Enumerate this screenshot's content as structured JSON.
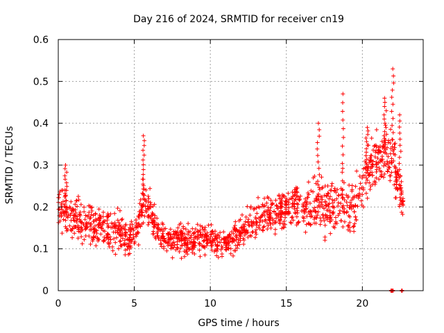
{
  "chart_data": {
    "type": "scatter",
    "title": "Day 216 of 2024, SRMTID for receiver cn19",
    "xlabel": "GPS time / hours",
    "ylabel": "SRMTID / TECUs",
    "xlim": [
      0,
      24
    ],
    "ylim": [
      0,
      0.6
    ],
    "x_ticks": [
      0,
      5,
      10,
      15,
      20
    ],
    "x_tick_labels": [
      "0",
      "5",
      "10",
      "15",
      "20"
    ],
    "y_ticks": [
      0,
      0.1,
      0.2,
      0.3,
      0.4,
      0.5,
      0.6
    ],
    "y_tick_labels": [
      "0",
      "0.1",
      "0.2",
      "0.3",
      "0.4",
      "0.5",
      "0.6"
    ],
    "grid": true,
    "marker": "+",
    "series": [
      {
        "name": "SRMTID",
        "color": "#ff0000",
        "trend": [
          {
            "x": 0.0,
            "y": 0.2,
            "spread": 0.06
          },
          {
            "x": 0.5,
            "y": 0.19,
            "spread": 0.06
          },
          {
            "x": 1.0,
            "y": 0.17,
            "spread": 0.05
          },
          {
            "x": 2.0,
            "y": 0.16,
            "spread": 0.05
          },
          {
            "x": 3.0,
            "y": 0.15,
            "spread": 0.05
          },
          {
            "x": 4.0,
            "y": 0.14,
            "spread": 0.05
          },
          {
            "x": 5.0,
            "y": 0.12,
            "spread": 0.04
          },
          {
            "x": 5.6,
            "y": 0.22,
            "spread": 0.06
          },
          {
            "x": 6.0,
            "y": 0.2,
            "spread": 0.05
          },
          {
            "x": 6.5,
            "y": 0.14,
            "spread": 0.04
          },
          {
            "x": 7.5,
            "y": 0.12,
            "spread": 0.04
          },
          {
            "x": 8.5,
            "y": 0.12,
            "spread": 0.04
          },
          {
            "x": 9.5,
            "y": 0.13,
            "spread": 0.04
          },
          {
            "x": 10.5,
            "y": 0.11,
            "spread": 0.04
          },
          {
            "x": 11.5,
            "y": 0.12,
            "spread": 0.04
          },
          {
            "x": 12.5,
            "y": 0.16,
            "spread": 0.04
          },
          {
            "x": 13.5,
            "y": 0.18,
            "spread": 0.05
          },
          {
            "x": 14.5,
            "y": 0.19,
            "spread": 0.05
          },
          {
            "x": 15.5,
            "y": 0.2,
            "spread": 0.05
          },
          {
            "x": 16.5,
            "y": 0.2,
            "spread": 0.06
          },
          {
            "x": 17.5,
            "y": 0.2,
            "spread": 0.07
          },
          {
            "x": 18.5,
            "y": 0.2,
            "spread": 0.08
          },
          {
            "x": 19.5,
            "y": 0.2,
            "spread": 0.07
          },
          {
            "x": 20.5,
            "y": 0.3,
            "spread": 0.07
          },
          {
            "x": 21.5,
            "y": 0.33,
            "spread": 0.08
          },
          {
            "x": 22.0,
            "y": 0.31,
            "spread": 0.09
          },
          {
            "x": 22.7,
            "y": 0.2,
            "spread": 0.03
          }
        ],
        "peaks": [
          {
            "x": 0.5,
            "y": 0.3
          },
          {
            "x": 5.6,
            "y": 0.37
          },
          {
            "x": 17.1,
            "y": 0.4
          },
          {
            "x": 18.7,
            "y": 0.47
          },
          {
            "x": 20.3,
            "y": 0.39
          },
          {
            "x": 21.5,
            "y": 0.46
          },
          {
            "x": 22.0,
            "y": 0.53
          },
          {
            "x": 22.5,
            "y": 0.42
          }
        ],
        "zero_points": [
          {
            "x": 21.9,
            "y": 0.0
          },
          {
            "x": 22.0,
            "y": 0.0
          },
          {
            "x": 22.6,
            "y": 0.0
          }
        ]
      }
    ]
  }
}
